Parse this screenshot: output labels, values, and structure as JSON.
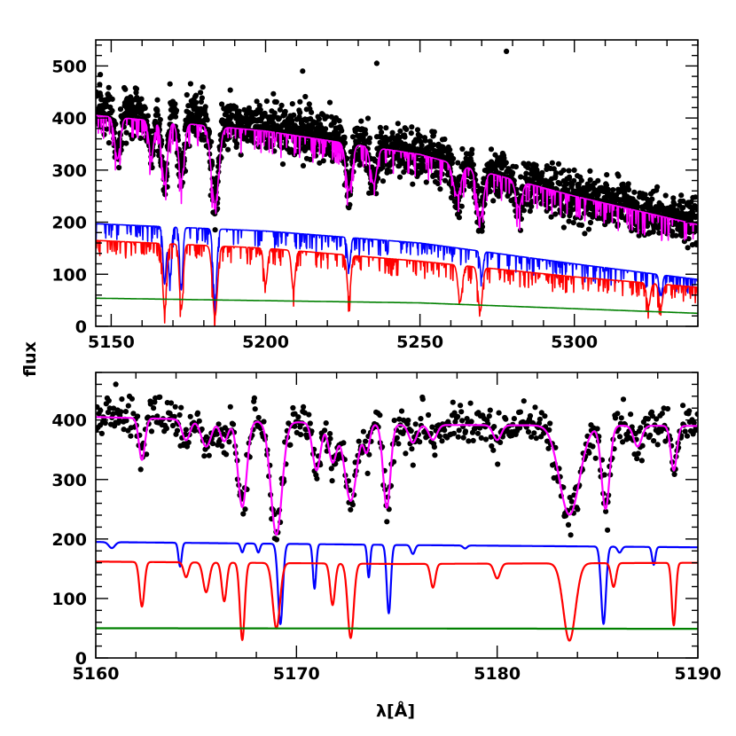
{
  "figure": {
    "ylabel": "flux",
    "xlabel": "λ[Å]"
  },
  "chart_data": [
    {
      "type": "line",
      "panel": "top",
      "xlim": [
        5145,
        5340
      ],
      "ylim": [
        0,
        550
      ],
      "xticks": [
        5150,
        5200,
        5250,
        5300
      ],
      "yticks": [
        0,
        100,
        200,
        300,
        400,
        500
      ],
      "xlabel": "",
      "ylabel": "flux",
      "series": [
        {
          "kind": "scatter",
          "color": "#000000",
          "trend": {
            "x": [
              5145,
              5200,
              5250,
              5300,
              5340
            ],
            "y": [
              415,
              385,
              330,
              250,
              200
            ]
          },
          "scatter_sd": 22,
          "dips": [
            {
              "x": 5152,
              "depth": 80,
              "width": 0.9
            },
            {
              "x": 5163,
              "depth": 70,
              "width": 0.8
            },
            {
              "x": 5167.3,
              "depth": 120,
              "width": 0.9
            },
            {
              "x": 5172.7,
              "depth": 110,
              "width": 0.9
            },
            {
              "x": 5183.6,
              "depth": 150,
              "width": 1.2
            },
            {
              "x": 5227,
              "depth": 90,
              "width": 1.0
            },
            {
              "x": 5235,
              "depth": 70,
              "width": 1.0
            },
            {
              "x": 5262,
              "depth": 60,
              "width": 1.2
            },
            {
              "x": 5269.5,
              "depth": 90,
              "width": 1.1
            },
            {
              "x": 5282,
              "depth": 50,
              "width": 1.0
            }
          ],
          "outliers": [
            {
              "x": 5236,
              "y": 505
            },
            {
              "x": 5278,
              "y": 528
            },
            {
              "x": 5212,
              "y": 490
            }
          ]
        },
        {
          "kind": "model",
          "color": "#ff00ff",
          "trend": {
            "x": [
              5145,
              5200,
              5250,
              5300,
              5340
            ],
            "y": [
              405,
              375,
              330,
              250,
              195
            ]
          },
          "dips": [
            {
              "x": 5152,
              "depth": 80,
              "width": 0.9
            },
            {
              "x": 5163,
              "depth": 70,
              "width": 0.8
            },
            {
              "x": 5167.3,
              "depth": 120,
              "width": 0.9
            },
            {
              "x": 5172.7,
              "depth": 110,
              "width": 0.9
            },
            {
              "x": 5183.6,
              "depth": 150,
              "width": 1.2
            },
            {
              "x": 5227,
              "depth": 90,
              "width": 1.0
            },
            {
              "x": 5235,
              "depth": 70,
              "width": 1.0
            },
            {
              "x": 5262,
              "depth": 60,
              "width": 1.2
            },
            {
              "x": 5269.5,
              "depth": 90,
              "width": 1.1
            },
            {
              "x": 5282,
              "depth": 50,
              "width": 1.0
            }
          ]
        },
        {
          "kind": "model",
          "color": "#0000ff",
          "trend": {
            "x": [
              5145,
              5200,
              5250,
              5300,
              5340
            ],
            "y": [
              197,
              183,
              160,
              120,
              90
            ]
          },
          "dips": [
            {
              "x": 5167.3,
              "depth": 110,
              "width": 0.5
            },
            {
              "x": 5169,
              "depth": 100,
              "width": 0.5
            },
            {
              "x": 5172.7,
              "depth": 120,
              "width": 0.5
            },
            {
              "x": 5183.6,
              "depth": 140,
              "width": 0.6
            },
            {
              "x": 5227,
              "depth": 60,
              "width": 0.5
            },
            {
              "x": 5270,
              "depth": 50,
              "width": 0.5
            },
            {
              "x": 5328,
              "depth": 40,
              "width": 0.5
            }
          ]
        },
        {
          "kind": "model",
          "color": "#ff0000",
          "trend": {
            "x": [
              5145,
              5200,
              5250,
              5300,
              5340
            ],
            "y": [
              165,
              150,
              125,
              95,
              75
            ]
          },
          "dips": [
            {
              "x": 5167.3,
              "depth": 130,
              "width": 0.6
            },
            {
              "x": 5172.7,
              "depth": 125,
              "width": 0.6
            },
            {
              "x": 5183.6,
              "depth": 135,
              "width": 0.8
            },
            {
              "x": 5200,
              "depth": 70,
              "width": 0.6
            },
            {
              "x": 5209,
              "depth": 75,
              "width": 0.6
            },
            {
              "x": 5227,
              "depth": 80,
              "width": 0.6
            },
            {
              "x": 5263,
              "depth": 70,
              "width": 0.7
            },
            {
              "x": 5269.5,
              "depth": 85,
              "width": 0.7
            },
            {
              "x": 5324,
              "depth": 45,
              "width": 0.6
            },
            {
              "x": 5328,
              "depth": 45,
              "width": 0.6
            }
          ]
        },
        {
          "kind": "model",
          "color": "#008000",
          "trend": {
            "x": [
              5145,
              5250,
              5340
            ],
            "y": [
              54,
              45,
              25
            ]
          },
          "dips": []
        }
      ]
    },
    {
      "type": "line",
      "panel": "bottom",
      "xlim": [
        5160,
        5190
      ],
      "ylim": [
        0,
        480
      ],
      "xticks": [
        5160,
        5170,
        5180,
        5190
      ],
      "yticks": [
        0,
        100,
        200,
        300,
        400
      ],
      "xlabel": "λ[Å]",
      "ylabel": "flux",
      "series": [
        {
          "kind": "scatter",
          "color": "#000000",
          "trend": {
            "x": [
              5160,
              5175,
              5190
            ],
            "y": [
              405,
              392,
              390
            ]
          },
          "scatter_sd": 18,
          "dips": [
            {
              "x": 5162.3,
              "depth": 70,
              "width": 0.15
            },
            {
              "x": 5164.5,
              "depth": 35,
              "width": 0.2
            },
            {
              "x": 5165.5,
              "depth": 45,
              "width": 0.25
            },
            {
              "x": 5166.4,
              "depth": 35,
              "width": 0.2
            },
            {
              "x": 5167.3,
              "depth": 145,
              "width": 0.22
            },
            {
              "x": 5169.0,
              "depth": 190,
              "width": 0.28
            },
            {
              "x": 5171.0,
              "depth": 80,
              "width": 0.2
            },
            {
              "x": 5171.8,
              "depth": 65,
              "width": 0.2
            },
            {
              "x": 5172.7,
              "depth": 130,
              "width": 0.3
            },
            {
              "x": 5173.5,
              "depth": 45,
              "width": 0.15
            },
            {
              "x": 5174.5,
              "depth": 140,
              "width": 0.18
            },
            {
              "x": 5175.8,
              "depth": 30,
              "width": 0.2
            },
            {
              "x": 5176.8,
              "depth": 25,
              "width": 0.2
            },
            {
              "x": 5180.0,
              "depth": 25,
              "width": 0.2
            },
            {
              "x": 5183.6,
              "depth": 150,
              "width": 0.5
            },
            {
              "x": 5185.4,
              "depth": 140,
              "width": 0.2
            },
            {
              "x": 5187.0,
              "depth": 35,
              "width": 0.2
            },
            {
              "x": 5188.8,
              "depth": 75,
              "width": 0.15
            }
          ],
          "outliers": [
            {
              "x": 5160.5,
              "y": 485
            },
            {
              "x": 5161.0,
              "y": 460
            },
            {
              "x": 5185.5,
              "y": 215
            }
          ]
        },
        {
          "kind": "model",
          "color": "#ff00ff",
          "trend": {
            "x": [
              5160,
              5175,
              5190
            ],
            "y": [
              405,
              392,
              390
            ]
          },
          "dips": [
            {
              "x": 5162.3,
              "depth": 70,
              "width": 0.15
            },
            {
              "x": 5164.5,
              "depth": 35,
              "width": 0.2
            },
            {
              "x": 5165.5,
              "depth": 45,
              "width": 0.25
            },
            {
              "x": 5166.4,
              "depth": 35,
              "width": 0.2
            },
            {
              "x": 5167.3,
              "depth": 145,
              "width": 0.22
            },
            {
              "x": 5169.0,
              "depth": 190,
              "width": 0.28
            },
            {
              "x": 5171.0,
              "depth": 80,
              "width": 0.2
            },
            {
              "x": 5171.8,
              "depth": 65,
              "width": 0.2
            },
            {
              "x": 5172.7,
              "depth": 130,
              "width": 0.3
            },
            {
              "x": 5173.5,
              "depth": 45,
              "width": 0.15
            },
            {
              "x": 5174.5,
              "depth": 140,
              "width": 0.18
            },
            {
              "x": 5175.8,
              "depth": 30,
              "width": 0.2
            },
            {
              "x": 5176.8,
              "depth": 25,
              "width": 0.2
            },
            {
              "x": 5180.0,
              "depth": 25,
              "width": 0.2
            },
            {
              "x": 5183.6,
              "depth": 150,
              "width": 0.5
            },
            {
              "x": 5185.4,
              "depth": 140,
              "width": 0.2
            },
            {
              "x": 5187.0,
              "depth": 35,
              "width": 0.2
            },
            {
              "x": 5188.8,
              "depth": 75,
              "width": 0.15
            }
          ]
        },
        {
          "kind": "model",
          "color": "#0000ff",
          "trend": {
            "x": [
              5160,
              5175,
              5190
            ],
            "y": [
              195,
              190,
              186
            ]
          },
          "dips": [
            {
              "x": 5160.8,
              "depth": 10,
              "width": 0.15
            },
            {
              "x": 5164.2,
              "depth": 40,
              "width": 0.08
            },
            {
              "x": 5167.3,
              "depth": 15,
              "width": 0.08
            },
            {
              "x": 5168.1,
              "depth": 15,
              "width": 0.08
            },
            {
              "x": 5169.2,
              "depth": 135,
              "width": 0.12
            },
            {
              "x": 5170.9,
              "depth": 75,
              "width": 0.08
            },
            {
              "x": 5173.6,
              "depth": 55,
              "width": 0.07
            },
            {
              "x": 5174.6,
              "depth": 115,
              "width": 0.1
            },
            {
              "x": 5175.8,
              "depth": 15,
              "width": 0.1
            },
            {
              "x": 5178.4,
              "depth": 5,
              "width": 0.1
            },
            {
              "x": 5185.3,
              "depth": 130,
              "width": 0.12
            },
            {
              "x": 5186.1,
              "depth": 10,
              "width": 0.1
            },
            {
              "x": 5187.8,
              "depth": 30,
              "width": 0.08
            }
          ]
        },
        {
          "kind": "model",
          "color": "#ff0000",
          "trend": {
            "x": [
              5160,
              5175,
              5190
            ],
            "y": [
              162,
              158,
              160
            ]
          },
          "dips": [
            {
              "x": 5162.3,
              "depth": 75,
              "width": 0.12
            },
            {
              "x": 5164.5,
              "depth": 25,
              "width": 0.12
            },
            {
              "x": 5165.5,
              "depth": 50,
              "width": 0.15
            },
            {
              "x": 5166.4,
              "depth": 65,
              "width": 0.12
            },
            {
              "x": 5167.3,
              "depth": 130,
              "width": 0.12
            },
            {
              "x": 5169.0,
              "depth": 110,
              "width": 0.18
            },
            {
              "x": 5171.8,
              "depth": 70,
              "width": 0.12
            },
            {
              "x": 5172.7,
              "depth": 125,
              "width": 0.15
            },
            {
              "x": 5176.8,
              "depth": 40,
              "width": 0.12
            },
            {
              "x": 5180.0,
              "depth": 25,
              "width": 0.15
            },
            {
              "x": 5183.6,
              "depth": 130,
              "width": 0.3
            },
            {
              "x": 5185.8,
              "depth": 40,
              "width": 0.12
            },
            {
              "x": 5188.8,
              "depth": 105,
              "width": 0.1
            }
          ]
        },
        {
          "kind": "model",
          "color": "#008000",
          "trend": {
            "x": [
              5160,
              5190
            ],
            "y": [
              50,
              49
            ]
          },
          "dips": []
        }
      ]
    }
  ]
}
